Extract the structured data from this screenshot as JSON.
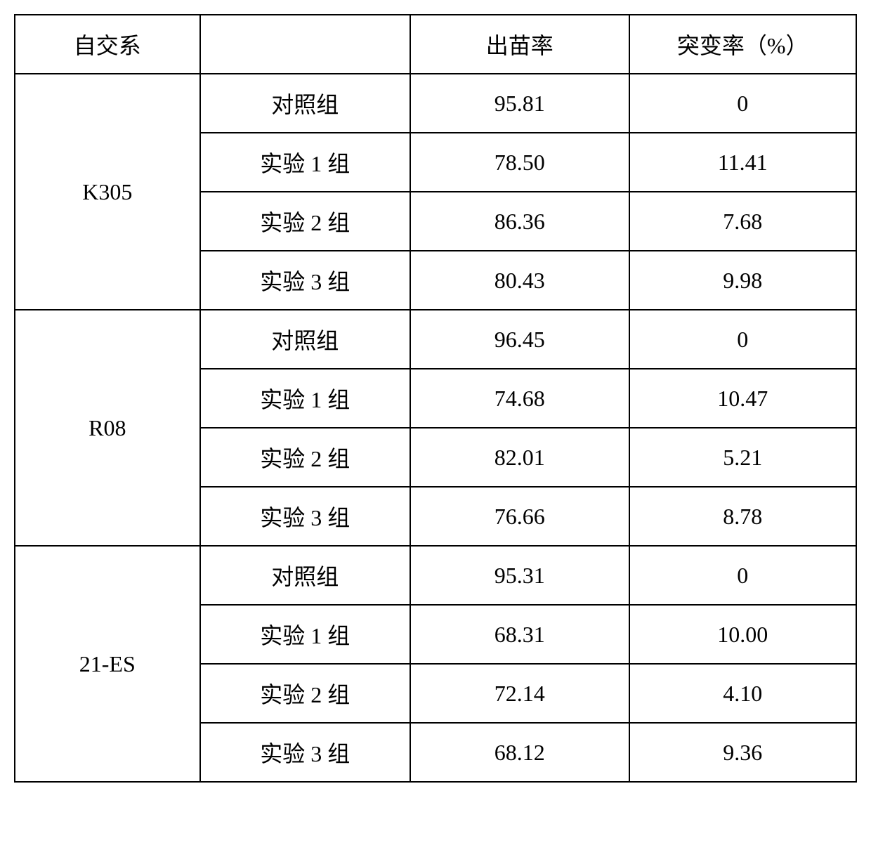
{
  "table": {
    "headers": {
      "col1": "自交系",
      "col2": "",
      "col3": "出苗率",
      "col4": "突变率（%）"
    },
    "groups": [
      {
        "line": "K305",
        "rows": [
          {
            "group": "对照组",
            "emergence": "95.81",
            "mutation": "0"
          },
          {
            "group": "实验 1 组",
            "emergence": "78.50",
            "mutation": "11.41"
          },
          {
            "group": "实验 2 组",
            "emergence": "86.36",
            "mutation": "7.68"
          },
          {
            "group": "实验 3 组",
            "emergence": "80.43",
            "mutation": "9.98"
          }
        ]
      },
      {
        "line": "R08",
        "rows": [
          {
            "group": "对照组",
            "emergence": "96.45",
            "mutation": "0"
          },
          {
            "group": "实验 1 组",
            "emergence": "74.68",
            "mutation": "10.47"
          },
          {
            "group": "实验 2 组",
            "emergence": "82.01",
            "mutation": "5.21"
          },
          {
            "group": "实验 3 组",
            "emergence": "76.66",
            "mutation": "8.78"
          }
        ]
      },
      {
        "line": "21-ES",
        "rows": [
          {
            "group": "对照组",
            "emergence": "95.31",
            "mutation": "0"
          },
          {
            "group": "实验 1 组",
            "emergence": "68.31",
            "mutation": "10.00"
          },
          {
            "group": "实验 2 组",
            "emergence": "72.14",
            "mutation": "4.10"
          },
          {
            "group": "实验 3 组",
            "emergence": "68.12",
            "mutation": "9.36"
          }
        ]
      }
    ],
    "styling": {
      "border_color": "#000000",
      "border_width": 2,
      "background_color": "#ffffff",
      "text_color": "#000000",
      "font_size": 32,
      "font_family": "SimSun",
      "cell_padding": 18
    }
  }
}
